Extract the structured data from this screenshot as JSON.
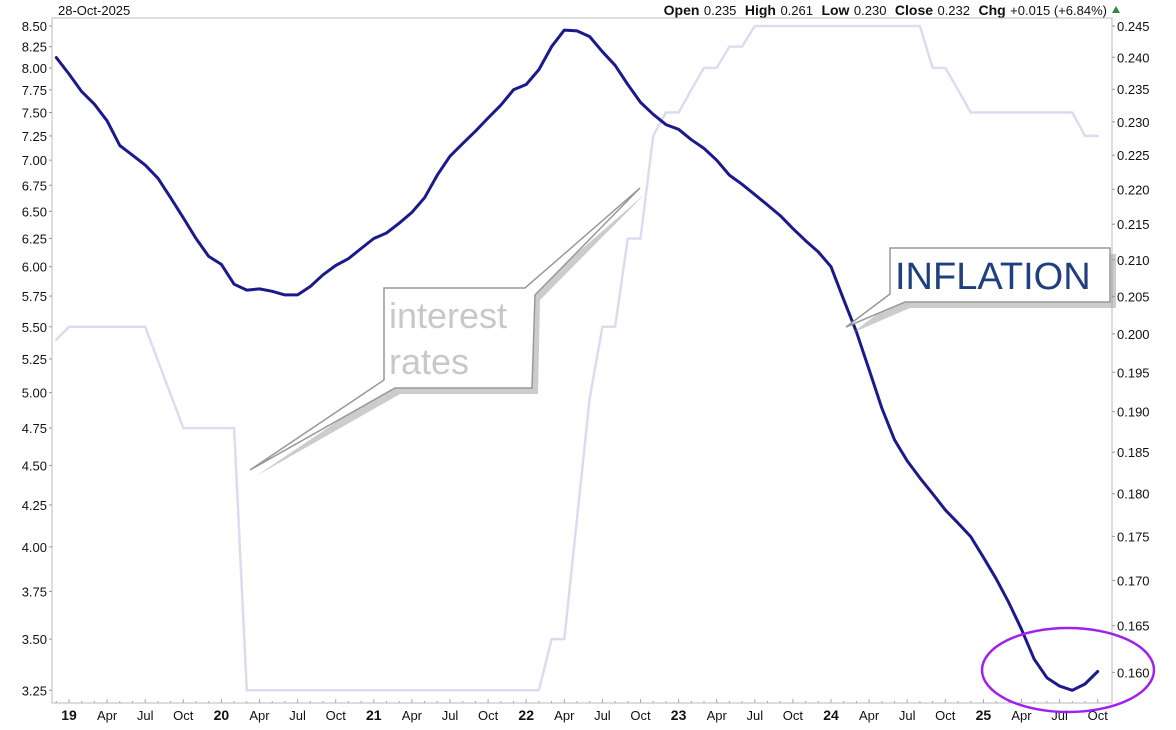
{
  "header": {
    "date": "28-Oct-2025",
    "open_label": "Open",
    "open": "0.235",
    "high_label": "High",
    "high": "0.261",
    "low_label": "Low",
    "low": "0.230",
    "close_label": "Close",
    "close": "0.232",
    "chg_label": "Chg",
    "chg": "+0.015 (+6.84%)",
    "chg_direction_icon": "triangle-up-icon",
    "up_color": "#2e8b3e"
  },
  "annotations": {
    "rates_line1": "interest",
    "rates_line2": "rates",
    "inflation": "INFLATION",
    "rates_text_color": "#c8c8c8",
    "inflation_text_color": "#1f3f7f",
    "highlight_ellipse_color": "#a020f0"
  },
  "chart_data": {
    "type": "line",
    "y_scale": "log",
    "grid": false,
    "left_axis": {
      "ticks": [
        "8.50",
        "8.25",
        "8.00",
        "7.75",
        "7.50",
        "7.25",
        "7.00",
        "6.75",
        "6.50",
        "6.25",
        "6.00",
        "5.75",
        "5.50",
        "5.25",
        "5.00",
        "4.75",
        "4.50",
        "4.25",
        "4.00",
        "3.75",
        "3.50",
        "3.25"
      ],
      "range": [
        3.25,
        8.5
      ]
    },
    "right_axis": {
      "ticks": [
        "0.245",
        "0.240",
        "0.235",
        "0.230",
        "0.225",
        "0.220",
        "0.215",
        "0.210",
        "0.205",
        "0.200",
        "0.195",
        "0.190",
        "0.185",
        "0.180",
        "0.175",
        "0.170",
        "0.165",
        "0.160"
      ],
      "range": [
        0.16,
        0.245
      ]
    },
    "x_axis": {
      "ticks": [
        "19",
        "Apr",
        "Jul",
        "Oct",
        "20",
        "Apr",
        "Jul",
        "Oct",
        "21",
        "Apr",
        "Jul",
        "Oct",
        "22",
        "Apr",
        "Jul",
        "Oct",
        "23",
        "Apr",
        "Jul",
        "Oct",
        "24",
        "Apr",
        "Jul",
        "Oct",
        "25",
        "Apr",
        "Jul",
        "Oct"
      ],
      "tick_dates": [
        "2019-01",
        "2019-04",
        "2019-07",
        "2019-10",
        "2020-01",
        "2020-04",
        "2020-07",
        "2020-10",
        "2021-01",
        "2021-04",
        "2021-07",
        "2021-10",
        "2022-01",
        "2022-04",
        "2022-07",
        "2022-10",
        "2023-01",
        "2023-04",
        "2023-07",
        "2023-10",
        "2024-01",
        "2024-04",
        "2024-07",
        "2024-10",
        "2025-01",
        "2025-04",
        "2025-07",
        "2025-10"
      ],
      "range": [
        "2018-12",
        "2025-10"
      ]
    },
    "series": [
      {
        "color": "#1a1a8c",
        "x": [
          "2018-12",
          "2019-01",
          "2019-02",
          "2019-03",
          "2019-04",
          "2019-05",
          "2019-06",
          "2019-07",
          "2019-08",
          "2019-09",
          "2019-10",
          "2019-11",
          "2019-12",
          "2020-01",
          "2020-02",
          "2020-03",
          "2020-04",
          "2020-05",
          "2020-06",
          "2020-07",
          "2020-08",
          "2020-09",
          "2020-10",
          "2020-11",
          "2020-12",
          "2021-01",
          "2021-02",
          "2021-03",
          "2021-04",
          "2021-05",
          "2021-06",
          "2021-07",
          "2021-08",
          "2021-09",
          "2021-10",
          "2021-11",
          "2021-12",
          "2022-01",
          "2022-02",
          "2022-03",
          "2022-04",
          "2022-05",
          "2022-06",
          "2022-07",
          "2022-08",
          "2022-09",
          "2022-10",
          "2022-11",
          "2022-12",
          "2023-01",
          "2023-02",
          "2023-03",
          "2023-04",
          "2023-05",
          "2023-06",
          "2023-07",
          "2023-08",
          "2023-09",
          "2023-10",
          "2023-11",
          "2023-12",
          "2024-01",
          "2024-02",
          "2024-03",
          "2024-04",
          "2024-05",
          "2024-06",
          "2024-07",
          "2024-08",
          "2024-09",
          "2024-10",
          "2024-11",
          "2024-12",
          "2025-01",
          "2025-02",
          "2025-03",
          "2025-04",
          "2025-05",
          "2025-06",
          "2025-07",
          "2025-08",
          "2025-09",
          "2025-10"
        ],
        "values": [
          8.12,
          7.93,
          7.73,
          7.59,
          7.41,
          7.15,
          7.05,
          6.95,
          6.82,
          6.63,
          6.44,
          6.25,
          6.09,
          6.02,
          5.85,
          5.8,
          5.81,
          5.79,
          5.76,
          5.76,
          5.83,
          5.93,
          6.01,
          6.07,
          6.16,
          6.25,
          6.3,
          6.39,
          6.49,
          6.63,
          6.85,
          7.04,
          7.17,
          7.3,
          7.44,
          7.58,
          7.75,
          7.81,
          7.98,
          8.25,
          8.45,
          8.44,
          8.37,
          8.19,
          8.03,
          7.81,
          7.61,
          7.48,
          7.37,
          7.32,
          7.21,
          7.12,
          7.0,
          6.85,
          6.76,
          6.66,
          6.56,
          6.46,
          6.34,
          6.23,
          6.13,
          6.0,
          5.72,
          5.46,
          5.17,
          4.89,
          4.67,
          4.53,
          4.42,
          4.32,
          4.22,
          4.14,
          4.06,
          3.94,
          3.82,
          3.69,
          3.55,
          3.4,
          3.31,
          3.27,
          3.25,
          3.28,
          3.34
        ]
      },
      {
        "color": "#dcdcf0",
        "x": [
          "2018-12",
          "2019-01",
          "2019-07",
          "2019-10",
          "2020-02",
          "2020-03",
          "2022-02",
          "2022-03",
          "2022-04",
          "2022-06",
          "2022-07",
          "2022-08",
          "2022-09",
          "2022-10",
          "2022-11",
          "2022-12",
          "2023-01",
          "2023-02",
          "2023-03",
          "2023-04",
          "2023-05",
          "2023-06",
          "2023-07",
          "2024-08",
          "2024-09",
          "2024-10",
          "2024-11",
          "2024-12",
          "2025-08",
          "2025-09",
          "2025-10"
        ],
        "values": [
          5.4,
          5.5,
          5.5,
          4.75,
          4.75,
          3.25,
          3.25,
          3.5,
          3.5,
          4.96,
          5.5,
          5.5,
          6.25,
          6.25,
          7.25,
          7.5,
          7.5,
          7.75,
          8.0,
          8.0,
          8.25,
          8.25,
          8.5,
          8.5,
          8.0,
          8.0,
          7.75,
          7.5,
          7.5,
          7.25,
          7.25
        ]
      }
    ]
  }
}
